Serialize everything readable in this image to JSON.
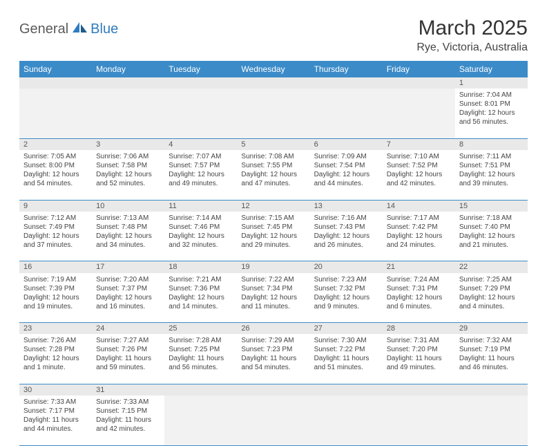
{
  "brand": {
    "part1": "General",
    "part2": "Blue"
  },
  "title": "March 2025",
  "location": "Rye, Victoria, Australia",
  "colors": {
    "header_bg": "#3b8bc8",
    "header_text": "#ffffff",
    "daynum_bg": "#e9e9e9",
    "border": "#3b8bc8",
    "brand_gray": "#5a5a5a",
    "brand_blue": "#2f7bbf"
  },
  "day_headers": [
    "Sunday",
    "Monday",
    "Tuesday",
    "Wednesday",
    "Thursday",
    "Friday",
    "Saturday"
  ],
  "weeks": [
    [
      null,
      null,
      null,
      null,
      null,
      null,
      {
        "n": "1",
        "sr": "7:04 AM",
        "ss": "8:01 PM",
        "dl": "12 hours and 56 minutes."
      }
    ],
    [
      {
        "n": "2",
        "sr": "7:05 AM",
        "ss": "8:00 PM",
        "dl": "12 hours and 54 minutes."
      },
      {
        "n": "3",
        "sr": "7:06 AM",
        "ss": "7:58 PM",
        "dl": "12 hours and 52 minutes."
      },
      {
        "n": "4",
        "sr": "7:07 AM",
        "ss": "7:57 PM",
        "dl": "12 hours and 49 minutes."
      },
      {
        "n": "5",
        "sr": "7:08 AM",
        "ss": "7:55 PM",
        "dl": "12 hours and 47 minutes."
      },
      {
        "n": "6",
        "sr": "7:09 AM",
        "ss": "7:54 PM",
        "dl": "12 hours and 44 minutes."
      },
      {
        "n": "7",
        "sr": "7:10 AM",
        "ss": "7:52 PM",
        "dl": "12 hours and 42 minutes."
      },
      {
        "n": "8",
        "sr": "7:11 AM",
        "ss": "7:51 PM",
        "dl": "12 hours and 39 minutes."
      }
    ],
    [
      {
        "n": "9",
        "sr": "7:12 AM",
        "ss": "7:49 PM",
        "dl": "12 hours and 37 minutes."
      },
      {
        "n": "10",
        "sr": "7:13 AM",
        "ss": "7:48 PM",
        "dl": "12 hours and 34 minutes."
      },
      {
        "n": "11",
        "sr": "7:14 AM",
        "ss": "7:46 PM",
        "dl": "12 hours and 32 minutes."
      },
      {
        "n": "12",
        "sr": "7:15 AM",
        "ss": "7:45 PM",
        "dl": "12 hours and 29 minutes."
      },
      {
        "n": "13",
        "sr": "7:16 AM",
        "ss": "7:43 PM",
        "dl": "12 hours and 26 minutes."
      },
      {
        "n": "14",
        "sr": "7:17 AM",
        "ss": "7:42 PM",
        "dl": "12 hours and 24 minutes."
      },
      {
        "n": "15",
        "sr": "7:18 AM",
        "ss": "7:40 PM",
        "dl": "12 hours and 21 minutes."
      }
    ],
    [
      {
        "n": "16",
        "sr": "7:19 AM",
        "ss": "7:39 PM",
        "dl": "12 hours and 19 minutes."
      },
      {
        "n": "17",
        "sr": "7:20 AM",
        "ss": "7:37 PM",
        "dl": "12 hours and 16 minutes."
      },
      {
        "n": "18",
        "sr": "7:21 AM",
        "ss": "7:36 PM",
        "dl": "12 hours and 14 minutes."
      },
      {
        "n": "19",
        "sr": "7:22 AM",
        "ss": "7:34 PM",
        "dl": "12 hours and 11 minutes."
      },
      {
        "n": "20",
        "sr": "7:23 AM",
        "ss": "7:32 PM",
        "dl": "12 hours and 9 minutes."
      },
      {
        "n": "21",
        "sr": "7:24 AM",
        "ss": "7:31 PM",
        "dl": "12 hours and 6 minutes."
      },
      {
        "n": "22",
        "sr": "7:25 AM",
        "ss": "7:29 PM",
        "dl": "12 hours and 4 minutes."
      }
    ],
    [
      {
        "n": "23",
        "sr": "7:26 AM",
        "ss": "7:28 PM",
        "dl": "12 hours and 1 minute."
      },
      {
        "n": "24",
        "sr": "7:27 AM",
        "ss": "7:26 PM",
        "dl": "11 hours and 59 minutes."
      },
      {
        "n": "25",
        "sr": "7:28 AM",
        "ss": "7:25 PM",
        "dl": "11 hours and 56 minutes."
      },
      {
        "n": "26",
        "sr": "7:29 AM",
        "ss": "7:23 PM",
        "dl": "11 hours and 54 minutes."
      },
      {
        "n": "27",
        "sr": "7:30 AM",
        "ss": "7:22 PM",
        "dl": "11 hours and 51 minutes."
      },
      {
        "n": "28",
        "sr": "7:31 AM",
        "ss": "7:20 PM",
        "dl": "11 hours and 49 minutes."
      },
      {
        "n": "29",
        "sr": "7:32 AM",
        "ss": "7:19 PM",
        "dl": "11 hours and 46 minutes."
      }
    ],
    [
      {
        "n": "30",
        "sr": "7:33 AM",
        "ss": "7:17 PM",
        "dl": "11 hours and 44 minutes."
      },
      {
        "n": "31",
        "sr": "7:33 AM",
        "ss": "7:15 PM",
        "dl": "11 hours and 42 minutes."
      },
      null,
      null,
      null,
      null,
      null
    ]
  ],
  "labels": {
    "sunrise": "Sunrise: ",
    "sunset": "Sunset: ",
    "daylight": "Daylight: "
  }
}
